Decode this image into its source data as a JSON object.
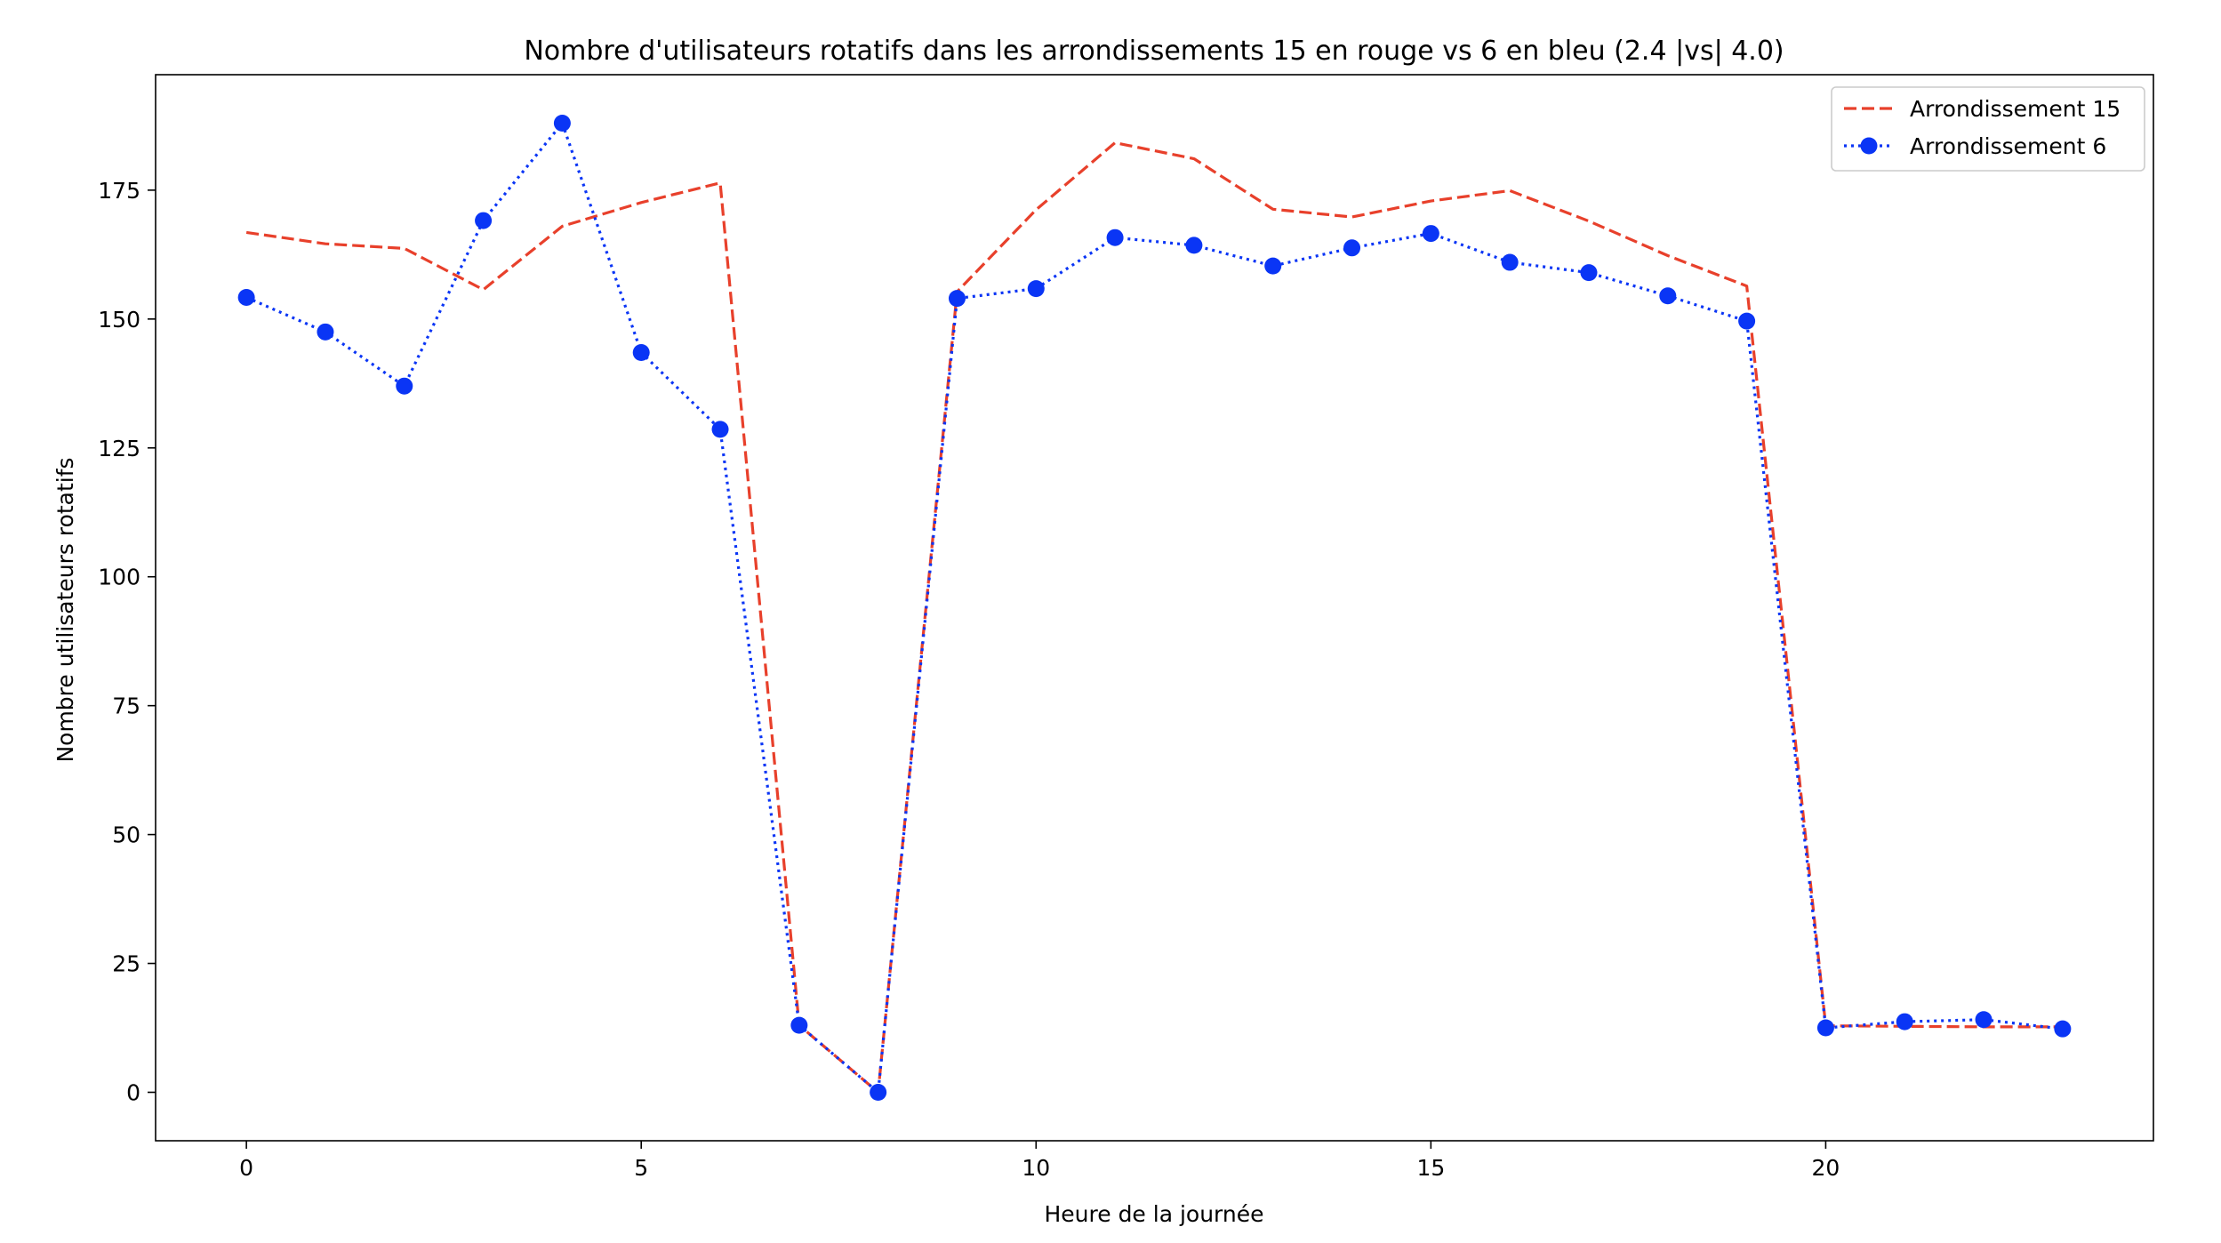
{
  "chart_data": {
    "type": "line",
    "title": "Nombre d'utilisateurs rotatifs dans les arrondissements 15 en rouge vs 6 en bleu (2.4 |vs| 4.0)",
    "xlabel": "Heure de la journée",
    "ylabel": "Nombre utilisateurs rotatifs",
    "xlim": [
      -1.15,
      24.15
    ],
    "ylim": [
      -9.4,
      197.4
    ],
    "xticks": [
      0,
      5,
      10,
      15,
      20
    ],
    "yticks": [
      0,
      25,
      50,
      75,
      100,
      125,
      150,
      175
    ],
    "grid": false,
    "legend_position": "top-right",
    "x": [
      0,
      1,
      2,
      3,
      4,
      5,
      6,
      7,
      8,
      9,
      10,
      11,
      12,
      13,
      14,
      15,
      16,
      17,
      18,
      19,
      20,
      21,
      22,
      23
    ],
    "series": [
      {
        "name": "Arrondissement 15",
        "color": "#e8402b",
        "line_style": "dashed",
        "marker": "none",
        "values": [
          166.8,
          164.6,
          163.7,
          155.7,
          168.0,
          172.6,
          176.4,
          13.0,
          0.0,
          155.3,
          171.2,
          184.2,
          181.1,
          171.3,
          169.8,
          172.9,
          174.9,
          169.0,
          162.3,
          156.4,
          12.9,
          12.8,
          12.7,
          12.7
        ]
      },
      {
        "name": "Arrondissement 6",
        "color": "#0a35f5",
        "line_style": "dotted",
        "marker": "circle",
        "values": [
          154.2,
          147.5,
          137.0,
          169.1,
          188.0,
          143.5,
          128.6,
          13.0,
          0.0,
          154.0,
          155.9,
          165.8,
          164.3,
          160.3,
          163.8,
          166.6,
          161.0,
          159.0,
          154.5,
          149.6,
          12.5,
          13.7,
          14.1,
          12.3
        ]
      }
    ]
  }
}
